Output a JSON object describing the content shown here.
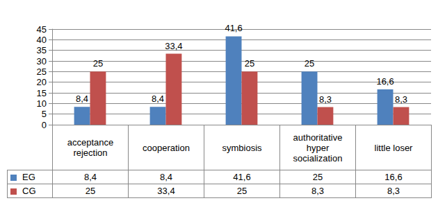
{
  "chart_data": {
    "type": "bar",
    "categories": [
      "acceptance rejection",
      "cooperation",
      "symbiosis",
      "authoritative hyper socialization",
      "little loser"
    ],
    "series": [
      {
        "name": "EG",
        "color": "#4f81bd",
        "values": [
          8.4,
          8.4,
          41.6,
          25,
          16.6
        ],
        "value_labels": [
          "8,4",
          "8,4",
          "41,6",
          "25",
          "16,6"
        ]
      },
      {
        "name": "CG",
        "color": "#c0504d",
        "values": [
          25,
          33.4,
          25,
          8.3,
          8.3
        ],
        "value_labels": [
          "25",
          "33,4",
          "25",
          "8,3",
          "8,3"
        ]
      }
    ],
    "ylim": [
      0,
      45
    ],
    "yticks": [
      0,
      5,
      10,
      15,
      20,
      25,
      30,
      35,
      40,
      45
    ],
    "grid": true,
    "data_labels": true,
    "legend": "bottom"
  }
}
